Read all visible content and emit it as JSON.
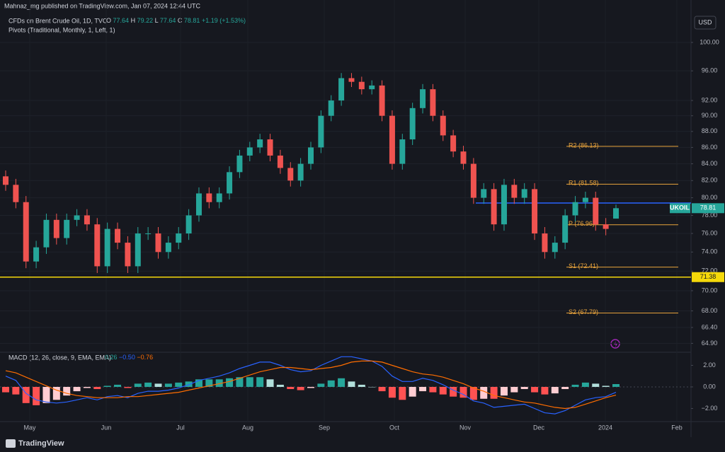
{
  "header": {
    "publisher": "Mahnaz_mg published on TradingView.com, Jan 07, 2024 12:44 UTC"
  },
  "legend": {
    "symbol": "CFDs on Brent Crude Oil, 1D, TVC",
    "ohlc": [
      {
        "label": "O",
        "value": "77.64"
      },
      {
        "label": "H",
        "value": "79.22"
      },
      {
        "label": "L",
        "value": "77.64"
      },
      {
        "label": "C",
        "value": "78.81"
      }
    ],
    "change": "+1.19 (+1.53%)",
    "pivots": "Pivots (Traditional, Monthly, 1, Left, 1)"
  },
  "currency": "USD",
  "price_chart": {
    "type": "candlestick",
    "symbol": "UKOIL",
    "log_scale": true,
    "ylim": [
      64.27,
      104.15
    ],
    "yticks": [
      {
        "value": 100,
        "label": "100.00"
      },
      {
        "value": 96,
        "label": "96.00"
      },
      {
        "value": 92,
        "label": "92.00"
      },
      {
        "value": 90,
        "label": "90.00"
      },
      {
        "value": 88,
        "label": "88.00"
      },
      {
        "value": 86,
        "label": "86.00"
      },
      {
        "value": 84,
        "label": "84.00"
      },
      {
        "value": 82,
        "label": "82.00"
      },
      {
        "value": 80,
        "label": "80.00"
      },
      {
        "value": 78,
        "label": "78.00"
      },
      {
        "value": 76,
        "label": "76.00"
      },
      {
        "value": 74,
        "label": "74.00"
      },
      {
        "value": 72,
        "label": "72.00"
      },
      {
        "value": 70,
        "label": "70.00"
      },
      {
        "value": 68,
        "label": "68.00"
      },
      {
        "value": 66.4,
        "label": "66.40"
      },
      {
        "value": 64.9,
        "label": "64.90"
      }
    ],
    "up_color": "#26a69a",
    "down_color": "#ef5350",
    "open": [
      82.5,
      81.5,
      79.5,
      73,
      74.5,
      77.5,
      75.5,
      77.5,
      78,
      77,
      72.5,
      76.5,
      75,
      72.5,
      76,
      76,
      74,
      75,
      76,
      78,
      80.5,
      79.5,
      80.5,
      83,
      85,
      86,
      87,
      85,
      83.5,
      82,
      84,
      86,
      90,
      92,
      95,
      94.5,
      93.5,
      94,
      90,
      84,
      87,
      91,
      93.5,
      90,
      87.5,
      85.5,
      84,
      80,
      81,
      77,
      81.5,
      80,
      81,
      76,
      74,
      75,
      78,
      79.5,
      80,
      77,
      77.64
    ],
    "high": [
      83.2,
      82.2,
      80.2,
      75.2,
      78.2,
      78.2,
      78.2,
      78.7,
      78.7,
      77.7,
      77.2,
      77.2,
      75.7,
      76.7,
      76.7,
      76.7,
      75.7,
      76.7,
      78.7,
      81.2,
      81.2,
      81.2,
      83.7,
      85.7,
      86.7,
      87.7,
      87.7,
      85.7,
      84.2,
      84.7,
      86.7,
      90.7,
      92.7,
      95.7,
      95.7,
      95.2,
      94.7,
      94.7,
      90.7,
      87.7,
      91.7,
      94.2,
      94.2,
      90.7,
      88.2,
      86.2,
      84.7,
      81.7,
      81.7,
      82.2,
      82.2,
      81.7,
      81.7,
      76.7,
      75.7,
      78.7,
      80.2,
      80.7,
      80.7,
      77.7,
      79.22
    ],
    "low": [
      80.8,
      78.8,
      72.3,
      72.3,
      73.8,
      74.8,
      74.8,
      76.8,
      76.3,
      71.8,
      71.8,
      74.3,
      71.8,
      71.8,
      75.3,
      73.3,
      73.3,
      74.3,
      75.3,
      77.3,
      78.8,
      78.8,
      79.8,
      82.3,
      84.3,
      85.3,
      84.3,
      82.8,
      81.3,
      81.3,
      83.3,
      85.3,
      89.3,
      91.3,
      93.8,
      92.8,
      92.8,
      89.3,
      83.3,
      83.3,
      86.3,
      90.3,
      89.3,
      86.8,
      84.8,
      83.3,
      79.3,
      79.3,
      76.3,
      76.3,
      79.3,
      79.3,
      75.3,
      73.3,
      73.3,
      74.3,
      77.3,
      78.8,
      76.3,
      75.8,
      77.64
    ],
    "close": [
      81.5,
      79.5,
      73,
      74.5,
      77.5,
      75.5,
      77.5,
      78,
      77,
      72.5,
      76.5,
      75,
      72.5,
      76,
      76,
      74,
      75,
      76,
      78,
      80.5,
      79.5,
      80.5,
      83,
      85,
      86,
      87,
      85,
      83.5,
      82,
      84,
      86,
      90,
      92,
      95,
      94.5,
      93.5,
      94,
      90,
      84,
      87,
      91,
      93.5,
      90,
      87.5,
      85.5,
      84,
      80,
      81,
      77,
      81.5,
      80,
      81,
      76,
      74,
      75,
      78,
      79.5,
      80,
      77,
      76.5,
      78.81
    ],
    "pivots": [
      {
        "label": "R2 (86.13)",
        "value": 86.13
      },
      {
        "label": "R1 (81.58)",
        "value": 81.58
      },
      {
        "label": "P (76.96)",
        "value": 76.96
      },
      {
        "label": "S1 (72.41)",
        "value": 72.41
      },
      {
        "label": "S2 (67.79)",
        "value": 67.79
      }
    ],
    "pivot_color": "#e8a33c",
    "hlines": [
      {
        "value": 79.4,
        "color": "#2962ff"
      },
      {
        "value": 71.38,
        "label": "71.38",
        "color": "#f5d90a"
      }
    ]
  },
  "macd": {
    "title": "MACD (12, 26, close, 9, EMA, EMA)",
    "hist_label": "0.26",
    "macd_label": "−0.50",
    "signal_label": "−0.76",
    "ylim": [
      -3.15,
      3.08
    ],
    "yticks": [
      {
        "value": 2,
        "label": "2.00"
      },
      {
        "value": 0,
        "label": "0.00"
      },
      {
        "value": -2,
        "label": "−2.00"
      }
    ],
    "macd_color": "#2962ff",
    "signal_color": "#ff6d00",
    "histogram": [
      -0.5,
      -0.7,
      -1.5,
      -1.7,
      -1.5,
      -1.2,
      -0.8,
      -0.4,
      -0.1,
      -0.2,
      0.1,
      0.2,
      -0.1,
      0.3,
      0.4,
      0.3,
      0.3,
      0.4,
      0.5,
      0.7,
      0.7,
      0.7,
      0.8,
      0.9,
      0.9,
      0.9,
      0.7,
      0.2,
      -0.2,
      -0.3,
      -0.1,
      0.3,
      0.6,
      0.8,
      0.5,
      0.2,
      0,
      -0.4,
      -1.0,
      -1.2,
      -0.9,
      -0.4,
      -0.5,
      -0.7,
      -0.9,
      -1.0,
      -1.2,
      -1.1,
      -1.1,
      -0.8,
      -0.5,
      -0.2,
      -0.5,
      -0.7,
      -0.6,
      -0.2,
      0.2,
      0.4,
      0.3,
      0.1,
      0.26
    ],
    "macd": [
      1.0,
      0.6,
      -0.6,
      -1.2,
      -1.4,
      -1.5,
      -1.4,
      -1.2,
      -1.0,
      -1.2,
      -0.9,
      -0.8,
      -1.0,
      -0.6,
      -0.4,
      -0.4,
      -0.3,
      -0.1,
      0.2,
      0.6,
      0.8,
      1.0,
      1.3,
      1.7,
      2.0,
      2.3,
      2.3,
      2.0,
      1.6,
      1.4,
      1.5,
      2.0,
      2.4,
      2.8,
      2.8,
      2.6,
      2.4,
      1.9,
      1.0,
      0.5,
      0.5,
      0.8,
      0.6,
      0.2,
      -0.3,
      -0.7,
      -1.3,
      -1.5,
      -1.9,
      -1.8,
      -1.7,
      -1.6,
      -2.0,
      -2.4,
      -2.5,
      -2.2,
      -1.7,
      -1.2,
      -1.0,
      -0.9,
      -0.5
    ],
    "signal": [
      1.5,
      1.3,
      0.9,
      0.5,
      0.1,
      -0.3,
      -0.6,
      -0.8,
      -0.9,
      -1.0,
      -1.0,
      -1.0,
      -0.9,
      -0.9,
      -0.8,
      -0.7,
      -0.6,
      -0.5,
      -0.3,
      -0.1,
      0.1,
      0.3,
      0.5,
      0.8,
      1.1,
      1.4,
      1.6,
      1.8,
      1.8,
      1.7,
      1.6,
      1.7,
      1.8,
      2.0,
      2.3,
      2.4,
      2.4,
      2.3,
      2.0,
      1.7,
      1.4,
      1.2,
      1.1,
      0.9,
      0.6,
      0.3,
      -0.1,
      -0.4,
      -0.8,
      -1.0,
      -1.2,
      -1.4,
      -1.5,
      -1.7,
      -1.9,
      -2.0,
      -1.9,
      -1.6,
      -1.3,
      -1.0,
      -0.76
    ]
  },
  "x_axis": [
    "May",
    "Jun",
    "Jul",
    "Aug",
    "Sep",
    "Oct",
    "Nov",
    "Dec",
    "2024",
    "Feb"
  ],
  "footer": "TradingView"
}
